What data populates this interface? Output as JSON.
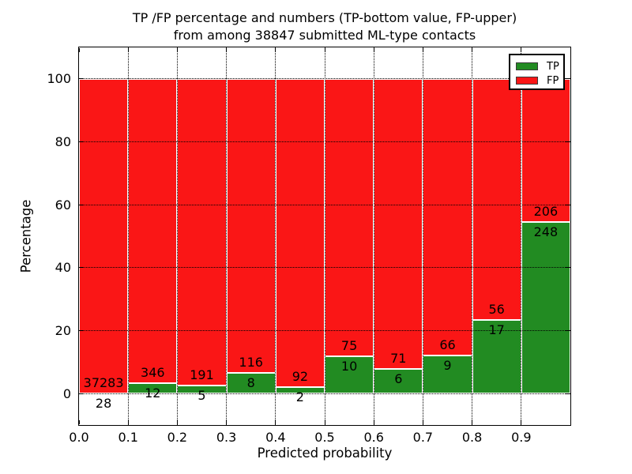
{
  "figure": {
    "title_line1": "TP /FP percentage and numbers (TP-bottom value, FP-upper)",
    "title_line2": "from among 38847 submitted ML-type contacts",
    "xlabel": "Predicted probability",
    "ylabel": "Percentage"
  },
  "legend": {
    "items": [
      {
        "label": "TP",
        "color": "#228b22"
      },
      {
        "label": "FP",
        "color": "#fa1616"
      }
    ]
  },
  "chart_data": {
    "type": "bar",
    "subtype": "stacked-percentage",
    "title": "TP /FP percentage and numbers (TP-bottom value, FP-upper) from among 38847 submitted ML-type contacts",
    "total_contacts": 38847,
    "xlabel": "Predicted probability",
    "ylabel": "Percentage",
    "categories": [
      "0.0-0.1",
      "0.1-0.2",
      "0.2-0.3",
      "0.3-0.4",
      "0.4-0.5",
      "0.5-0.6",
      "0.6-0.7",
      "0.7-0.8",
      "0.8-0.9",
      "0.9-1.0"
    ],
    "bin_edges": [
      0.0,
      0.1,
      0.2,
      0.3,
      0.4,
      0.5,
      0.6,
      0.7,
      0.8,
      0.9,
      1.0
    ],
    "series": [
      {
        "name": "TP",
        "color": "#228b22",
        "counts": [
          28,
          12,
          5,
          8,
          2,
          10,
          6,
          9,
          17,
          248
        ],
        "percent": [
          0.1,
          3.4,
          2.6,
          6.5,
          2.1,
          11.8,
          7.8,
          12.0,
          23.3,
          54.6
        ]
      },
      {
        "name": "FP",
        "color": "#fa1616",
        "counts": [
          37283,
          346,
          191,
          116,
          92,
          75,
          71,
          66,
          56,
          206
        ],
        "percent": [
          99.9,
          96.6,
          97.4,
          93.5,
          97.9,
          88.2,
          92.2,
          88.0,
          76.7,
          45.4
        ]
      }
    ],
    "xticks": [
      "0.0",
      "0.1",
      "0.2",
      "0.3",
      "0.4",
      "0.5",
      "0.6",
      "0.7",
      "0.8",
      "0.9"
    ],
    "yticks": [
      0,
      20,
      40,
      60,
      80,
      100
    ],
    "xlim": [
      0.0,
      1.0
    ],
    "ylim": [
      -10,
      110
    ],
    "grid": "dotted-black-drawn-above-bars",
    "legend_position": "upper-right"
  }
}
